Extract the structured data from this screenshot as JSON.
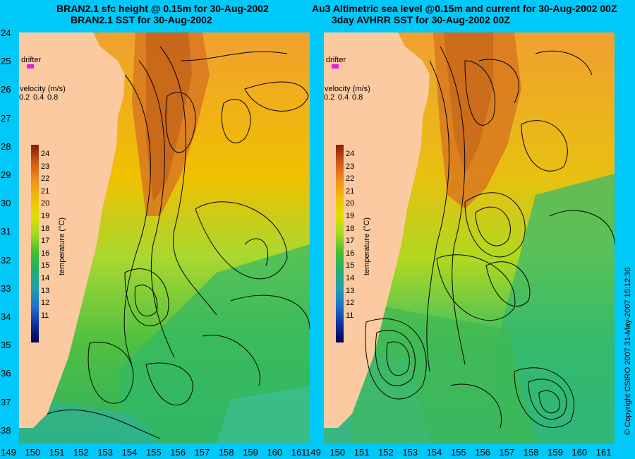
{
  "left_panel": {
    "title_line1": "BRAN2.1 sfc height @ 0.15m for 30-Aug-2002",
    "title_line2": "BRAN2.1 SST for 30-Aug-2002"
  },
  "right_panel": {
    "title_line1": "Au3 Altimetric sea level  @0.15m and current for 30-Aug-2002 00Z",
    "title_line2": "3day AVHRR SST for 30-Aug-2002 00Z"
  },
  "legend": {
    "drifter_label": "drifter",
    "velocity_label": "velocity (m/s)",
    "velocity_scale": [
      "0.2",
      "0.4",
      "0.8"
    ],
    "colorbar_title": "temperature (°C)",
    "colorbar_ticks": [
      "24",
      "23",
      "22",
      "21",
      "20",
      "19",
      "18",
      "17",
      "16",
      "15",
      "14",
      "13",
      "12",
      "11"
    ]
  },
  "axes": {
    "y_ticks": [
      "24",
      "25",
      "26",
      "27",
      "28",
      "29",
      "30",
      "31",
      "32",
      "33",
      "34",
      "35",
      "36",
      "37",
      "38"
    ],
    "x_ticks": [
      "149",
      "150",
      "151",
      "152",
      "153",
      "154",
      "155",
      "156",
      "157",
      "158",
      "159",
      "160",
      "161"
    ]
  },
  "copyright": "© Copyright CSIRO 2007   31-May-2007 15:12:30",
  "colors": {
    "background": "#00c8f8",
    "land": "#fccaa0",
    "drifter": "#e020e0"
  }
}
